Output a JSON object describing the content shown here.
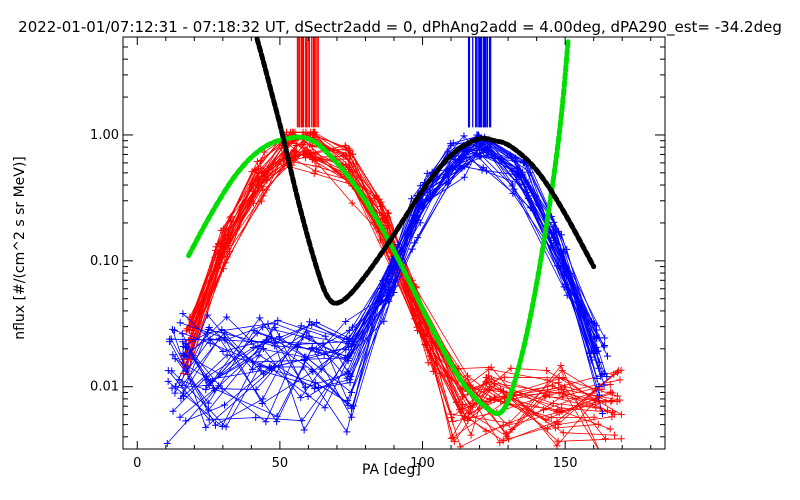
{
  "chart_data": {
    "type": "line",
    "title": "2022-01-01/07:12:31 - 07:18:32 UT, dSectr2add = 0, dPhAng2add = 4.00deg, dPA290_est= -34.2deg",
    "xlabel": "PA [deg]",
    "ylabel": "nflux [#/(cm^2 s sr MeV)]",
    "xlim": [
      -5,
      185
    ],
    "ylim": [
      0.0032,
      6.0
    ],
    "yscale": "log",
    "xticks": [
      0,
      50,
      100,
      150
    ],
    "yticks": [
      {
        "value": 1.0,
        "label": "1.00"
      },
      {
        "value": 0.1,
        "label": "0.10"
      },
      {
        "value": 0.01,
        "label": "0.01"
      }
    ],
    "series": [
      {
        "name": "red sector fluxes",
        "color": "#ff0000",
        "marker": "+",
        "peak_pa": 60,
        "count": 34
      },
      {
        "name": "blue sector fluxes",
        "color": "#0000ff",
        "marker": "+",
        "peak_pa": 120,
        "count": 34
      },
      {
        "name": "green fit",
        "color": "#00dd00",
        "style": "dashed",
        "x": [
          18,
          25,
          35,
          45,
          55,
          60,
          65,
          75,
          85,
          95,
          105,
          115,
          125,
          128,
          131,
          136,
          141,
          146,
          149,
          151
        ],
        "y": [
          0.11,
          0.22,
          0.52,
          0.85,
          0.97,
          0.95,
          0.8,
          0.45,
          0.2,
          0.072,
          0.024,
          0.0095,
          0.006,
          0.0062,
          0.0085,
          0.022,
          0.085,
          0.45,
          1.6,
          5.5
        ]
      },
      {
        "name": "black fit",
        "color": "#000000",
        "style": "dashed",
        "x": [
          42,
          44,
          47,
          51,
          56,
          62,
          67,
          72,
          80,
          90,
          100,
          110,
          120,
          125,
          130,
          140,
          150,
          160
        ],
        "y": [
          5.8,
          4.0,
          2.2,
          1.0,
          0.32,
          0.1,
          0.046,
          0.046,
          0.075,
          0.16,
          0.37,
          0.72,
          0.97,
          0.9,
          0.86,
          0.55,
          0.24,
          0.09
        ]
      }
    ]
  }
}
